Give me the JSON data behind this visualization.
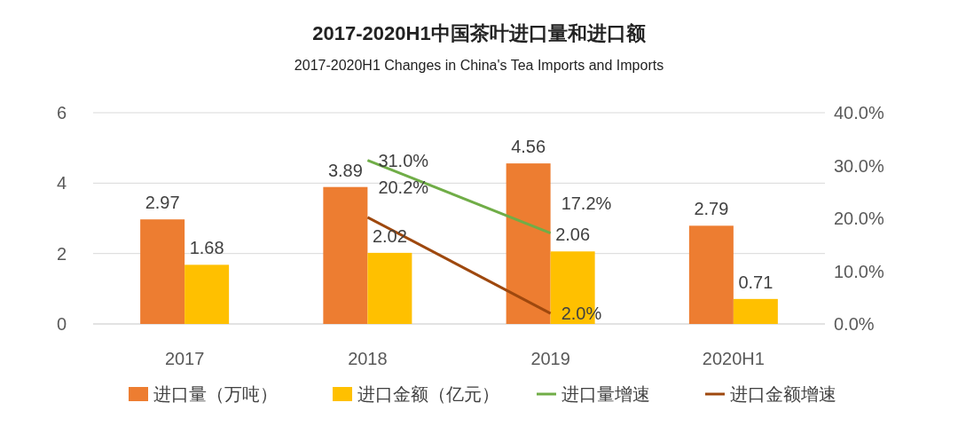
{
  "chart_data": {
    "type": "bar",
    "title": "2017-2020H1中国茶叶进口量和进口额",
    "subtitle": "2017-2020H1 Changes in China's Tea Imports and Imports",
    "categories": [
      "2017",
      "2018",
      "2019",
      "2020H1"
    ],
    "series": [
      {
        "name": "进口量（万吨）",
        "color": "#ed7d31",
        "values": [
          2.97,
          3.89,
          4.56,
          2.79
        ],
        "value_labels": [
          "2.97",
          "3.89",
          "4.56",
          "2.79"
        ]
      },
      {
        "name": "进口金额（亿元）",
        "color": "#ffc000",
        "values": [
          1.68,
          2.02,
          2.06,
          0.71
        ],
        "value_labels": [
          "1.68",
          "2.02",
          "2.06",
          "0.71"
        ]
      },
      {
        "name": "进口量增速",
        "type": "line",
        "axis": "y2",
        "color": "#70ad47",
        "values": [
          null,
          31.0,
          17.2,
          null
        ],
        "value_labels": [
          null,
          "31.0%",
          "17.2%",
          null
        ]
      },
      {
        "name": "进口金额增速",
        "type": "line",
        "axis": "y2",
        "color": "#9e480e",
        "values": [
          null,
          20.2,
          2.0,
          null
        ],
        "value_labels": [
          null,
          "20.2%",
          "2.0%",
          null
        ]
      }
    ],
    "ylim": [
      0,
      6
    ],
    "yticks": [
      0,
      2,
      4,
      6
    ],
    "y2lim": [
      0,
      40
    ],
    "y2ticks": [
      {
        "value": 0,
        "label": "0.0%"
      },
      {
        "value": 10,
        "label": "10.0%"
      },
      {
        "value": 20,
        "label": "20.0%"
      },
      {
        "value": 30,
        "label": "30.0%"
      },
      {
        "value": 40,
        "label": "40.0%"
      }
    ],
    "grid": "y",
    "legend": "bottom",
    "marker": "none",
    "line_style": "solid"
  }
}
